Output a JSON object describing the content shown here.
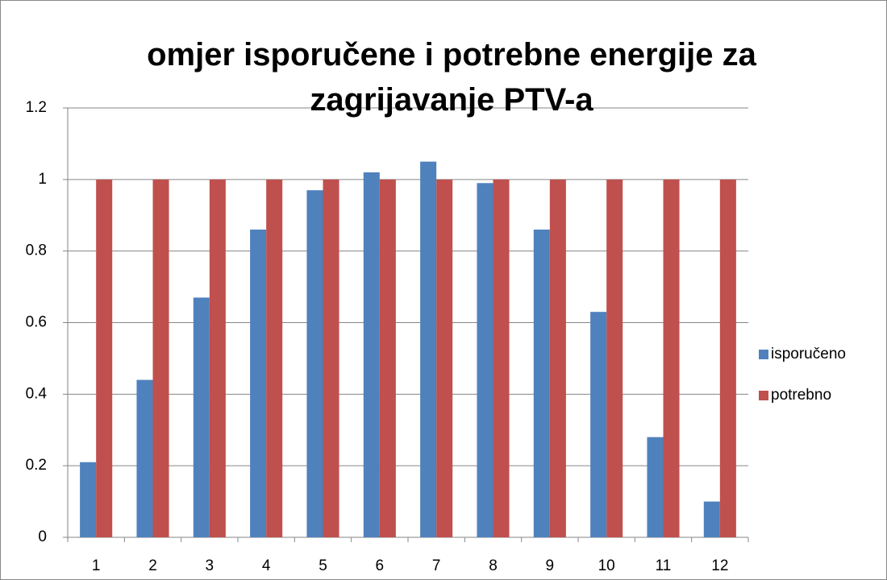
{
  "chart_data": {
    "type": "bar",
    "title": "omjer isporučene i potrebne energije za zagrijavanje PTV-a",
    "categories": [
      "1",
      "2",
      "3",
      "4",
      "5",
      "6",
      "7",
      "8",
      "9",
      "10",
      "11",
      "12"
    ],
    "series": [
      {
        "name": "isporučeno",
        "color": "#4f81bd",
        "values": [
          0.21,
          0.44,
          0.67,
          0.86,
          0.97,
          1.02,
          1.05,
          0.99,
          0.86,
          0.63,
          0.28,
          0.1
        ]
      },
      {
        "name": "potrebno",
        "color": "#c0504d",
        "values": [
          1,
          1,
          1,
          1,
          1,
          1,
          1,
          1,
          1,
          1,
          1,
          1
        ]
      }
    ],
    "ylim": [
      0,
      1.2
    ],
    "yticks": [
      0,
      0.2,
      0.4,
      0.6,
      0.8,
      1,
      1.2
    ],
    "grid": true,
    "legend": "right"
  }
}
